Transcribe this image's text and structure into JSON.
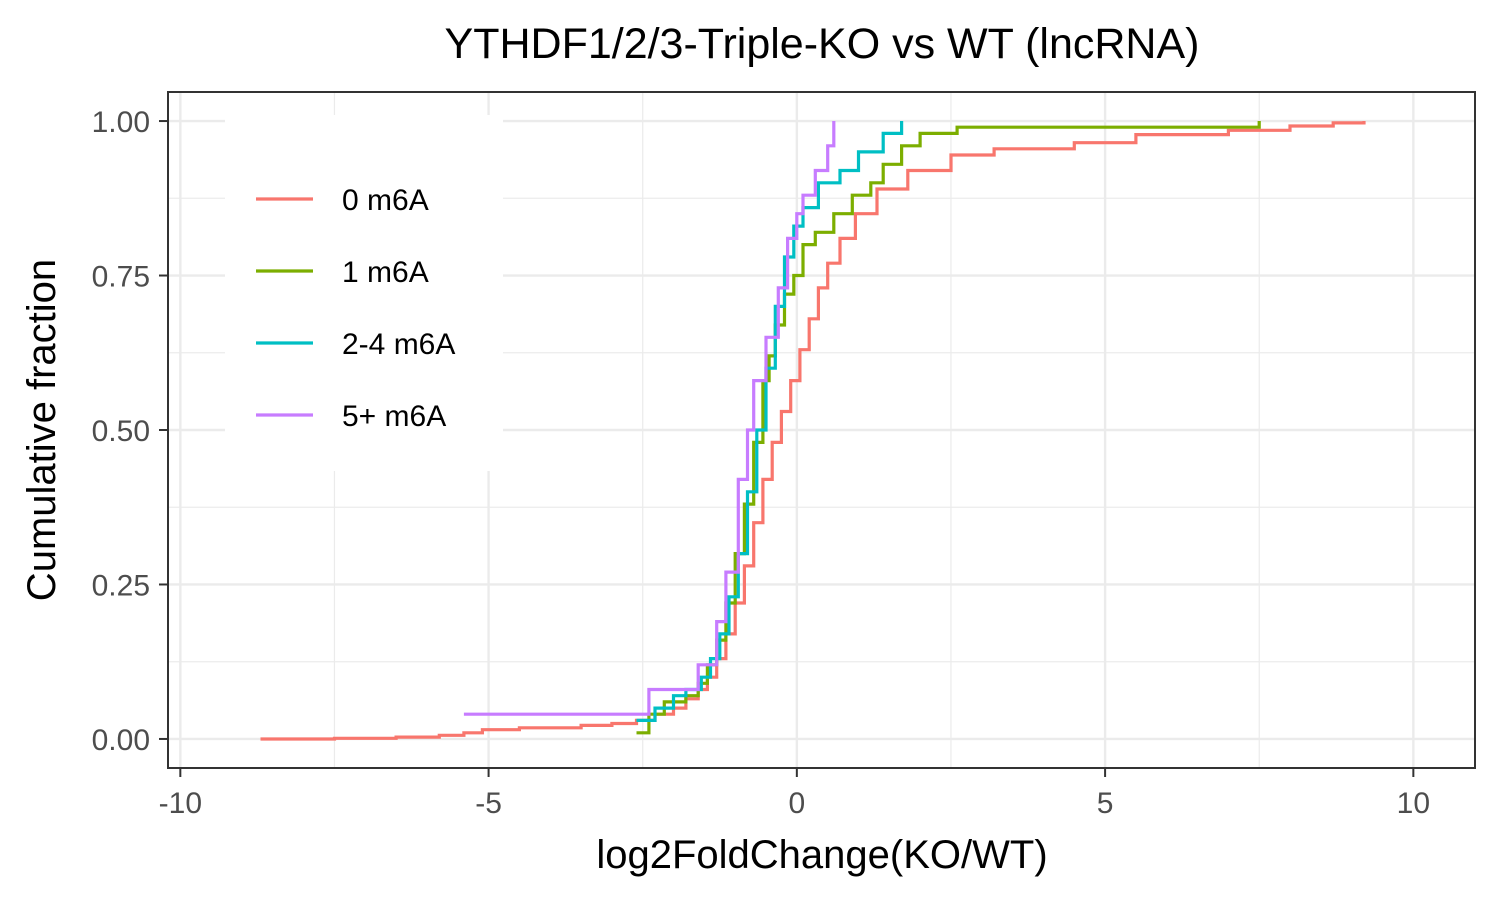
{
  "chart_data": {
    "type": "line",
    "subtype": "ecdf-step",
    "title": "YTHDF1/2/3-Triple-KO vs WT (lncRNA)",
    "xlabel": "log2FoldChange(KO/WT)",
    "ylabel": "Cumulative fraction",
    "xlim": [
      -10.2,
      11
    ],
    "ylim": [
      -0.047,
      1.047
    ],
    "x_ticks": [
      -10,
      -5,
      0,
      5,
      10
    ],
    "x_tick_labels": [
      "-10",
      "-5",
      "0",
      "5",
      "10"
    ],
    "y_ticks": [
      0,
      0.25,
      0.5,
      0.75,
      1
    ],
    "y_tick_labels": [
      "0.00",
      "0.25",
      "0.50",
      "0.75",
      "1.00"
    ],
    "grid": true,
    "legend_position": "top-left",
    "series": [
      {
        "name": "0 m6A",
        "color": "#F8766D",
        "points": [
          [
            -8.7,
            0
          ],
          [
            -7.5,
            0.001
          ],
          [
            -6.5,
            0.003
          ],
          [
            -5.8,
            0.006
          ],
          [
            -5.4,
            0.01
          ],
          [
            -5.1,
            0.015
          ],
          [
            -4.5,
            0.018
          ],
          [
            -3.5,
            0.022
          ],
          [
            -3,
            0.025
          ],
          [
            -2.6,
            0.03
          ],
          [
            -2.3,
            0.04
          ],
          [
            -2.0,
            0.05
          ],
          [
            -1.8,
            0.065
          ],
          [
            -1.6,
            0.08
          ],
          [
            -1.45,
            0.1
          ],
          [
            -1.3,
            0.13
          ],
          [
            -1.15,
            0.17
          ],
          [
            -1.0,
            0.22
          ],
          [
            -0.85,
            0.28
          ],
          [
            -0.7,
            0.35
          ],
          [
            -0.55,
            0.42
          ],
          [
            -0.4,
            0.48
          ],
          [
            -0.25,
            0.53
          ],
          [
            -0.1,
            0.58
          ],
          [
            0.05,
            0.63
          ],
          [
            0.2,
            0.68
          ],
          [
            0.35,
            0.73
          ],
          [
            0.5,
            0.77
          ],
          [
            0.7,
            0.81
          ],
          [
            0.95,
            0.85
          ],
          [
            1.3,
            0.89
          ],
          [
            1.8,
            0.92
          ],
          [
            2.5,
            0.945
          ],
          [
            3.2,
            0.955
          ],
          [
            4.5,
            0.965
          ],
          [
            5.5,
            0.978
          ],
          [
            7.0,
            0.985
          ],
          [
            8.0,
            0.992
          ],
          [
            8.7,
            0.997
          ],
          [
            9.2,
            1.0
          ]
        ]
      },
      {
        "name": "1 m6A",
        "color": "#7CAE00",
        "points": [
          [
            -2.6,
            0.01
          ],
          [
            -2.4,
            0.04
          ],
          [
            -2.15,
            0.06
          ],
          [
            -1.8,
            0.07
          ],
          [
            -1.6,
            0.09
          ],
          [
            -1.45,
            0.12
          ],
          [
            -1.3,
            0.16
          ],
          [
            -1.15,
            0.22
          ],
          [
            -1.0,
            0.3
          ],
          [
            -0.85,
            0.38
          ],
          [
            -0.7,
            0.48
          ],
          [
            -0.55,
            0.58
          ],
          [
            -0.45,
            0.62
          ],
          [
            -0.35,
            0.67
          ],
          [
            -0.2,
            0.72
          ],
          [
            -0.05,
            0.75
          ],
          [
            0.1,
            0.8
          ],
          [
            0.3,
            0.82
          ],
          [
            0.6,
            0.85
          ],
          [
            0.9,
            0.88
          ],
          [
            1.2,
            0.9
          ],
          [
            1.4,
            0.93
          ],
          [
            1.7,
            0.96
          ],
          [
            2.0,
            0.98
          ],
          [
            2.6,
            0.99
          ],
          [
            7.5,
            1.0
          ]
        ]
      },
      {
        "name": "2-4 m6A",
        "color": "#00BFC4",
        "points": [
          [
            -2.6,
            0.03
          ],
          [
            -2.3,
            0.05
          ],
          [
            -2.0,
            0.07
          ],
          [
            -1.8,
            0.08
          ],
          [
            -1.55,
            0.1
          ],
          [
            -1.4,
            0.13
          ],
          [
            -1.25,
            0.17
          ],
          [
            -1.1,
            0.23
          ],
          [
            -0.95,
            0.3
          ],
          [
            -0.8,
            0.4
          ],
          [
            -0.65,
            0.5
          ],
          [
            -0.5,
            0.6
          ],
          [
            -0.35,
            0.7
          ],
          [
            -0.2,
            0.78
          ],
          [
            -0.05,
            0.83
          ],
          [
            0.1,
            0.86
          ],
          [
            0.35,
            0.9
          ],
          [
            0.7,
            0.92
          ],
          [
            1.0,
            0.95
          ],
          [
            1.4,
            0.98
          ],
          [
            1.7,
            1.0
          ]
        ]
      },
      {
        "name": "5+ m6A",
        "color": "#C77CFF",
        "points": [
          [
            -5.4,
            0.04
          ],
          [
            -2.4,
            0.08
          ],
          [
            -1.6,
            0.12
          ],
          [
            -1.3,
            0.19
          ],
          [
            -1.15,
            0.27
          ],
          [
            -0.95,
            0.42
          ],
          [
            -0.8,
            0.5
          ],
          [
            -0.7,
            0.58
          ],
          [
            -0.5,
            0.65
          ],
          [
            -0.3,
            0.73
          ],
          [
            -0.15,
            0.81
          ],
          [
            0.0,
            0.85
          ],
          [
            0.1,
            0.88
          ],
          [
            0.3,
            0.92
          ],
          [
            0.5,
            0.96
          ],
          [
            0.6,
            1.0
          ]
        ]
      }
    ]
  }
}
